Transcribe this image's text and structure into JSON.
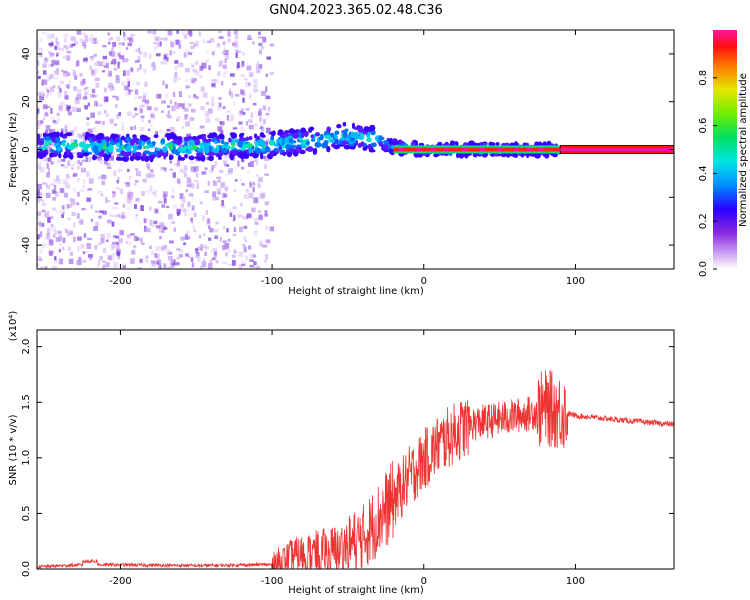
{
  "title": "GN04.2023.365.02.48.C36",
  "chart_data": [
    {
      "type": "heatmap",
      "title": "GN04.2023.365.02.48.C36",
      "xlabel": "Height of straight line (km)",
      "ylabel": "Frequency (Hz)",
      "xlim": [
        -255,
        165
      ],
      "ylim": [
        -50,
        50
      ],
      "xticks": [
        -200,
        -100,
        0,
        100
      ],
      "yticks": [
        -40,
        -20,
        0,
        20,
        40
      ],
      "xtick_labels": [
        "-200",
        "-100",
        "0",
        "100"
      ],
      "ytick_labels": [
        "-40",
        "-20",
        "0",
        "20",
        "40"
      ],
      "colorbar": {
        "label": "Normalized spectral amplitude",
        "range": [
          0.0,
          1.0
        ],
        "ticks": [
          0.0,
          0.2,
          0.4,
          0.6,
          0.8
        ],
        "tick_labels": [
          "0.0",
          "0.2",
          "0.4",
          "0.6",
          "0.8"
        ],
        "colormap": "rainbow"
      },
      "frequency_trace": [
        {
          "x": -250,
          "f": 2
        },
        {
          "x": -200,
          "f": 1
        },
        {
          "x": -150,
          "f": 1
        },
        {
          "x": -100,
          "f": 2
        },
        {
          "x": -70,
          "f": 4
        },
        {
          "x": -50,
          "f": 6
        },
        {
          "x": -30,
          "f": 4
        },
        {
          "x": -20,
          "f": 1
        },
        {
          "x": 0,
          "f": 0
        },
        {
          "x": 90,
          "f": 0
        },
        {
          "x": 165,
          "f": 0
        }
      ]
    },
    {
      "type": "line",
      "xlabel": "Height of straight line (km)",
      "ylabel": "SNR (10 * v/v)",
      "y_multiplier": "(x10⁴)",
      "xlim": [
        -255,
        165
      ],
      "ylim": [
        0,
        2.15
      ],
      "xticks": [
        -200,
        -100,
        0,
        100
      ],
      "yticks": [
        0.0,
        0.5,
        1.0,
        1.5,
        2.0
      ],
      "xtick_labels": [
        "-200",
        "-100",
        "0",
        "100"
      ],
      "ytick_labels": [
        "0.0",
        "0.5",
        "1.0",
        "1.5",
        "2.0"
      ],
      "series": [
        {
          "name": "SNR",
          "color": "#ee3333",
          "envelope": [
            {
              "x": -255,
              "y": 0.02
            },
            {
              "x": -220,
              "y": 0.04
            },
            {
              "x": -150,
              "y": 0.03
            },
            {
              "x": -100,
              "y": 0.04
            },
            {
              "x": -85,
              "y": 0.12
            },
            {
              "x": -60,
              "y": 0.15
            },
            {
              "x": -40,
              "y": 0.28
            },
            {
              "x": -30,
              "y": 0.45
            },
            {
              "x": -20,
              "y": 0.62
            },
            {
              "x": -10,
              "y": 0.82
            },
            {
              "x": 0,
              "y": 0.98
            },
            {
              "x": 10,
              "y": 1.12
            },
            {
              "x": 20,
              "y": 1.22
            },
            {
              "x": 30,
              "y": 1.3
            },
            {
              "x": 50,
              "y": 1.35
            },
            {
              "x": 70,
              "y": 1.4
            },
            {
              "x": 80,
              "y": 1.45
            },
            {
              "x": 90,
              "y": 1.42
            },
            {
              "x": 100,
              "y": 1.38
            },
            {
              "x": 130,
              "y": 1.34
            },
            {
              "x": 165,
              "y": 1.3
            }
          ]
        }
      ]
    }
  ]
}
